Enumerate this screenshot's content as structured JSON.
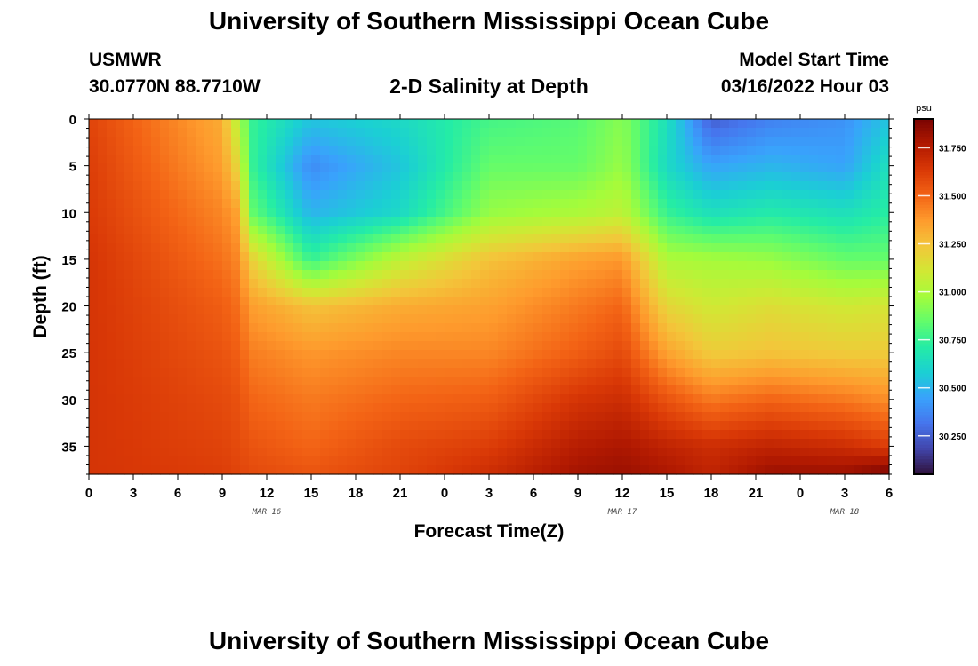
{
  "header": {
    "title": "University of Southern Mississippi Ocean Cube",
    "station": "USMWR",
    "coords": "30.0770N  88.7710W",
    "plot_title": "2-D Salinity at Depth",
    "model_start_label": "Model Start Time",
    "model_start_value": "03/16/2022 Hour 03"
  },
  "footer": {
    "title": "University of Southern Mississippi Ocean Cube"
  },
  "chart_data": {
    "type": "heatmap",
    "title": "2-D Salinity at Depth",
    "xlabel": "Forecast Time(Z)",
    "ylabel": "Depth (ft)",
    "x_tick_labels": [
      "0",
      "3",
      "6",
      "9",
      "12",
      "15",
      "18",
      "21",
      "0",
      "3",
      "6",
      "9",
      "12",
      "15",
      "18",
      "21",
      "0",
      "3",
      "6"
    ],
    "x_range_hours": [
      0,
      54
    ],
    "date_labels": [
      {
        "text": "MAR 16",
        "hour": 12
      },
      {
        "text": "MAR 17",
        "hour": 36
      },
      {
        "text": "MAR 18",
        "hour": 51
      }
    ],
    "y_ticks": [
      0,
      5,
      10,
      15,
      20,
      25,
      30,
      35
    ],
    "ylim": [
      38,
      0
    ],
    "colorbar": {
      "unit": "psu",
      "range": [
        30.05,
        31.9
      ],
      "ticks": [
        "31.750",
        "31.500",
        "31.250",
        "31.000",
        "30.750",
        "30.500",
        "30.250"
      ],
      "tick_values": [
        31.75,
        31.5,
        31.25,
        31.0,
        30.75,
        30.5,
        30.25
      ],
      "colors": [
        "#30123b",
        "#4145ab",
        "#4675ed",
        "#39a2fc",
        "#1bcfd4",
        "#24eca6",
        "#61fc6c",
        "#a4fc3b",
        "#d1e834",
        "#f3c63a",
        "#fe9b2d",
        "#f36315",
        "#d93806",
        "#b11901",
        "#7a0402"
      ]
    },
    "profiles_hours": [
      0,
      9,
      10,
      11,
      15,
      21,
      27,
      33,
      36,
      39,
      42,
      46,
      51,
      54
    ],
    "profile_depths_ft": [
      0,
      5,
      10,
      15,
      20,
      25,
      30,
      35,
      38
    ],
    "salinity_profiles": [
      [
        31.6,
        31.62,
        31.63,
        31.65,
        31.65,
        31.65,
        31.65,
        31.65,
        31.65
      ],
      [
        31.32,
        31.36,
        31.42,
        31.47,
        31.52,
        31.55,
        31.58,
        31.6,
        31.62
      ],
      [
        31.05,
        31.18,
        31.35,
        31.42,
        31.48,
        31.52,
        31.56,
        31.58,
        31.6
      ],
      [
        30.75,
        30.75,
        30.85,
        31.2,
        31.36,
        31.44,
        31.5,
        31.55,
        31.58
      ],
      [
        30.55,
        30.38,
        30.5,
        30.75,
        31.25,
        31.38,
        31.45,
        31.5,
        31.55
      ],
      [
        30.62,
        30.55,
        30.62,
        31.05,
        31.32,
        31.42,
        31.5,
        31.58,
        31.6
      ],
      [
        30.78,
        30.85,
        30.95,
        31.25,
        31.35,
        31.42,
        31.52,
        31.62,
        31.68
      ],
      [
        30.82,
        30.85,
        31.0,
        31.35,
        31.45,
        31.52,
        31.65,
        31.75,
        31.8
      ],
      [
        30.92,
        30.95,
        31.05,
        31.38,
        31.5,
        31.58,
        31.68,
        31.78,
        31.82
      ],
      [
        30.65,
        30.62,
        30.75,
        31.0,
        31.18,
        31.35,
        31.55,
        31.72,
        31.78
      ],
      [
        30.25,
        30.45,
        30.65,
        30.98,
        31.1,
        31.22,
        31.45,
        31.68,
        31.72
      ],
      [
        30.35,
        30.5,
        30.7,
        30.95,
        31.15,
        31.25,
        31.5,
        31.72,
        31.82
      ],
      [
        30.4,
        30.45,
        30.65,
        30.85,
        31.1,
        31.22,
        31.45,
        31.68,
        31.82
      ],
      [
        30.55,
        30.65,
        30.72,
        30.85,
        31.12,
        31.22,
        31.4,
        31.62,
        31.9
      ]
    ]
  }
}
